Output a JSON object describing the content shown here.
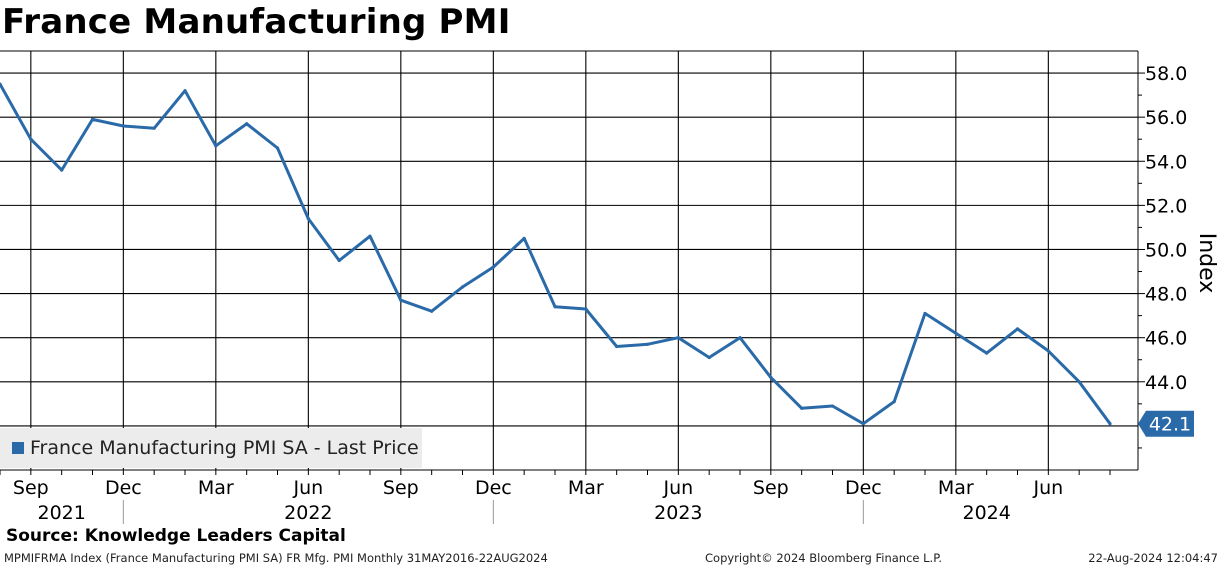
{
  "title": "France Manufacturing PMI",
  "legend_label": "France Manufacturing PMI SA - Last Price",
  "source": "Source: Knowledge Leaders Capital",
  "footer": {
    "left": "MPMIFRMA Index (France Manufacturing PMI SA) FR Mfg. PMI  Monthly 31MAY2016-22AUG2024",
    "mid": "Copyright© 2024 Bloomberg Finance L.P.",
    "right": "22-Aug-2024 12:04:47"
  },
  "colors": {
    "series": "#2a6aa8",
    "label_bg": "#2a6aa8"
  },
  "chart_data": {
    "type": "line",
    "ylabel": "Index",
    "ylim": [
      40,
      59
    ],
    "y_ticks": [
      44.0,
      46.0,
      48.0,
      50.0,
      52.0,
      54.0,
      56.0,
      58.0
    ],
    "y_tick_labels": [
      "44.0",
      "46.0",
      "48.0",
      "50.0",
      "52.0",
      "54.0",
      "56.0",
      "58.0"
    ],
    "x_tick_labels": [
      "Sep",
      "Dec",
      "Mar",
      "Jun",
      "Sep",
      "Dec",
      "Mar",
      "Jun",
      "Sep",
      "Dec",
      "Mar",
      "Jun"
    ],
    "x_tick_months": [
      "2021-09",
      "2021-12",
      "2022-03",
      "2022-06",
      "2022-09",
      "2022-12",
      "2023-03",
      "2023-06",
      "2023-09",
      "2023-12",
      "2024-03",
      "2024-06"
    ],
    "year_labels": [
      {
        "label": "2021",
        "center": "2021-10"
      },
      {
        "label": "2022",
        "center": "2022-06"
      },
      {
        "label": "2023",
        "center": "2023-06"
      },
      {
        "label": "2024",
        "center": "2024-04"
      }
    ],
    "year_separators": [
      "2021-12",
      "2022-12",
      "2023-12"
    ],
    "last_value_label": "42.1",
    "series": [
      {
        "name": "France Manufacturing PMI SA - Last Price",
        "x": [
          "2021-08",
          "2021-09",
          "2021-10",
          "2021-11",
          "2021-12",
          "2022-01",
          "2022-02",
          "2022-03",
          "2022-04",
          "2022-05",
          "2022-06",
          "2022-07",
          "2022-08",
          "2022-09",
          "2022-10",
          "2022-11",
          "2022-12",
          "2023-01",
          "2023-02",
          "2023-03",
          "2023-04",
          "2023-05",
          "2023-06",
          "2023-07",
          "2023-08",
          "2023-09",
          "2023-10",
          "2023-11",
          "2023-12",
          "2024-01",
          "2024-02",
          "2024-03",
          "2024-04",
          "2024-05",
          "2024-06",
          "2024-07",
          "2024-08"
        ],
        "values": [
          57.5,
          55.0,
          53.6,
          55.9,
          55.6,
          55.5,
          57.2,
          54.7,
          55.7,
          54.6,
          51.4,
          49.5,
          50.6,
          47.7,
          47.2,
          48.3,
          49.2,
          50.5,
          47.4,
          47.3,
          45.6,
          45.7,
          46.0,
          45.1,
          46.0,
          44.2,
          42.8,
          42.9,
          42.1,
          43.1,
          47.1,
          46.2,
          45.3,
          46.4,
          45.4,
          44.0,
          42.1
        ]
      }
    ]
  }
}
